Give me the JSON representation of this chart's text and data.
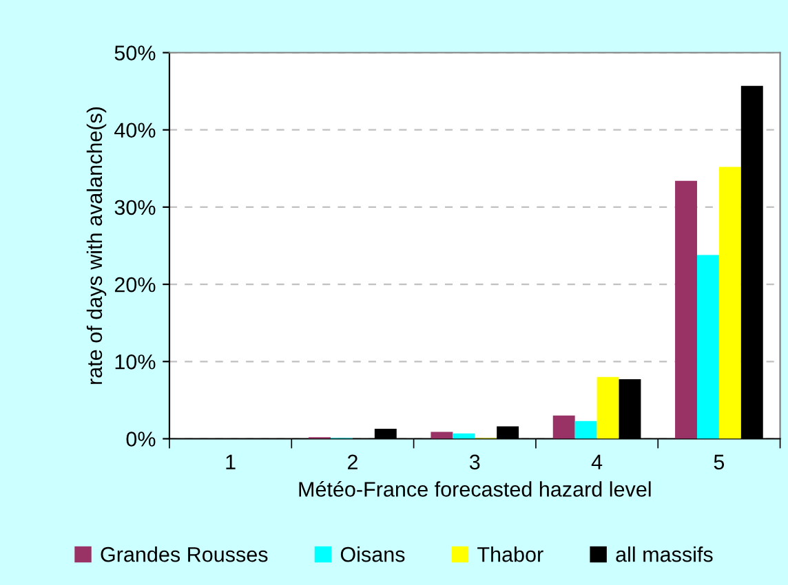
{
  "chart_data": {
    "type": "bar",
    "xlabel": "Météo-France forecasted hazard level",
    "ylabel": "rate of days with avalanche(s)",
    "categories": [
      "1",
      "2",
      "3",
      "4",
      "5"
    ],
    "series": [
      {
        "name": "Grandes Rousses",
        "color": "#993366",
        "values": [
          0,
          0.2,
          0.9,
          3.0,
          33.4
        ]
      },
      {
        "name": "Oisans",
        "color": "#00ffff",
        "values": [
          0,
          0.1,
          0.7,
          2.3,
          23.8
        ]
      },
      {
        "name": "Thabor",
        "color": "#ffff00",
        "values": [
          0,
          0,
          0.1,
          8.0,
          35.2
        ]
      },
      {
        "name": "all massifs",
        "color": "#000000",
        "values": [
          0,
          1.3,
          1.6,
          7.7,
          45.7
        ]
      }
    ],
    "ylim": [
      0,
      50
    ],
    "yticks": [
      {
        "value": 0,
        "label": "0%"
      },
      {
        "value": 10,
        "label": "10%"
      },
      {
        "value": 20,
        "label": "20%"
      },
      {
        "value": 30,
        "label": "30%"
      },
      {
        "value": 40,
        "label": "40%"
      },
      {
        "value": 50,
        "label": "50%"
      }
    ],
    "grid": "y",
    "legend": "bottom"
  }
}
